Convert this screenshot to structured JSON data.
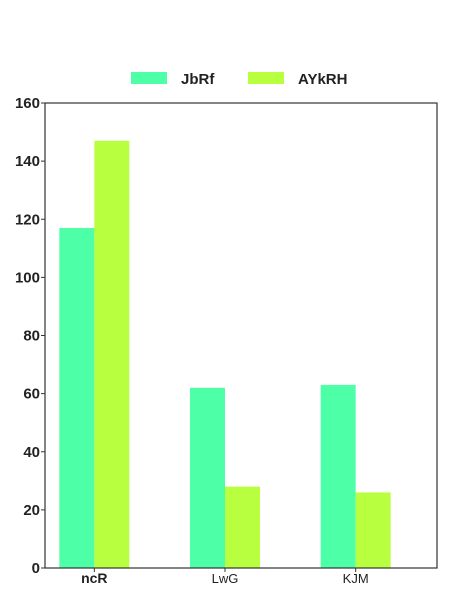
{
  "chart_data": {
    "type": "bar",
    "title": "",
    "xlabel": "",
    "ylabel": "",
    "categories": [
      "ncR",
      "LwG",
      "KJM"
    ],
    "series": [
      {
        "name": "JbRf",
        "values": [
          117,
          62,
          63
        ],
        "color": "#4dffa6"
      },
      {
        "name": "AYkRH",
        "values": [
          147,
          28,
          26
        ],
        "color": "#b8ff40"
      }
    ],
    "ylim": [
      0,
      160
    ],
    "yticks": [
      0,
      20,
      40,
      60,
      80,
      100,
      120,
      140,
      160
    ],
    "grid": false,
    "legend_position": "top-center",
    "axis_color": "#333333",
    "bold_categories": [
      "ncR"
    ]
  }
}
